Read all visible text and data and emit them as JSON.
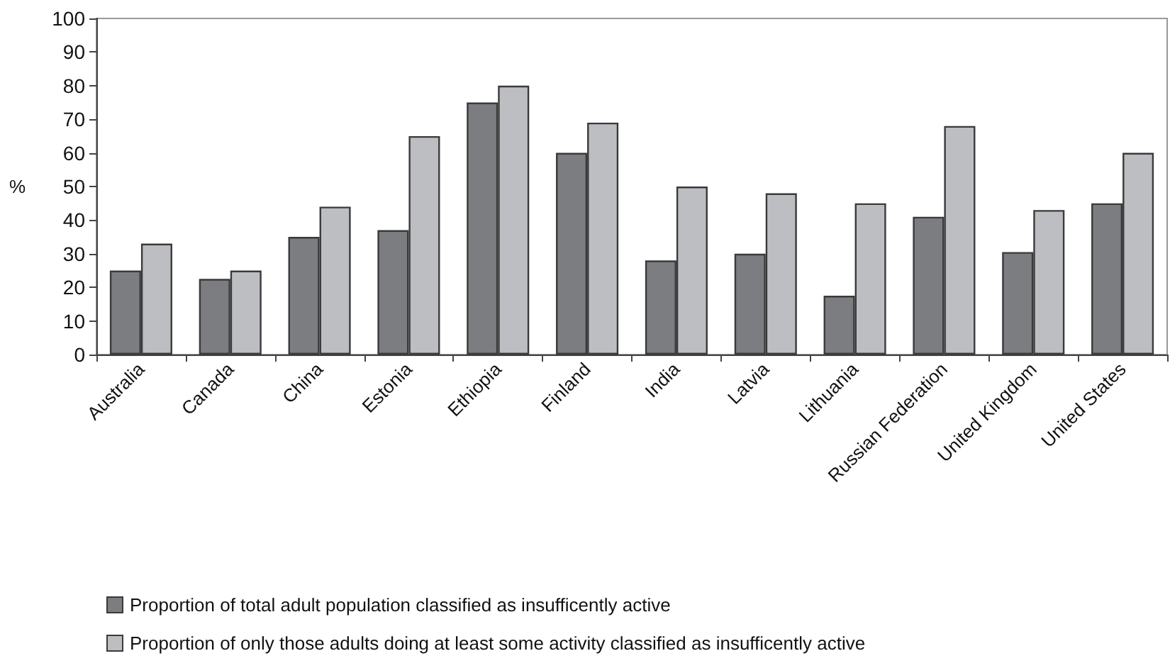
{
  "chart_data": {
    "type": "bar",
    "ylabel": "%",
    "categories": [
      "Australia",
      "Canada",
      "China",
      "Estonia",
      "Ethiopia",
      "Finland",
      "India",
      "Latvia",
      "Lithuania",
      "Russian Federation",
      "United Kingdom",
      "United States"
    ],
    "series": [
      {
        "name": "Proportion of total adult population classified as insufficently active",
        "color": "#7c7d81",
        "values": [
          25,
          22.5,
          35,
          37,
          75,
          60,
          28,
          30,
          17.5,
          41,
          30.5,
          45
        ]
      },
      {
        "name": "Proportion of only those adults doing at least some activity classified as insufficently active",
        "color": "#bdbec2",
        "values": [
          33,
          25,
          44,
          65,
          80,
          69,
          50,
          48,
          45,
          68,
          43,
          60
        ]
      }
    ],
    "ylim": [
      0,
      100
    ],
    "yticks": [
      0,
      10,
      20,
      30,
      40,
      50,
      60,
      70,
      80,
      90,
      100
    ],
    "grid": false,
    "legend": "bottom"
  }
}
